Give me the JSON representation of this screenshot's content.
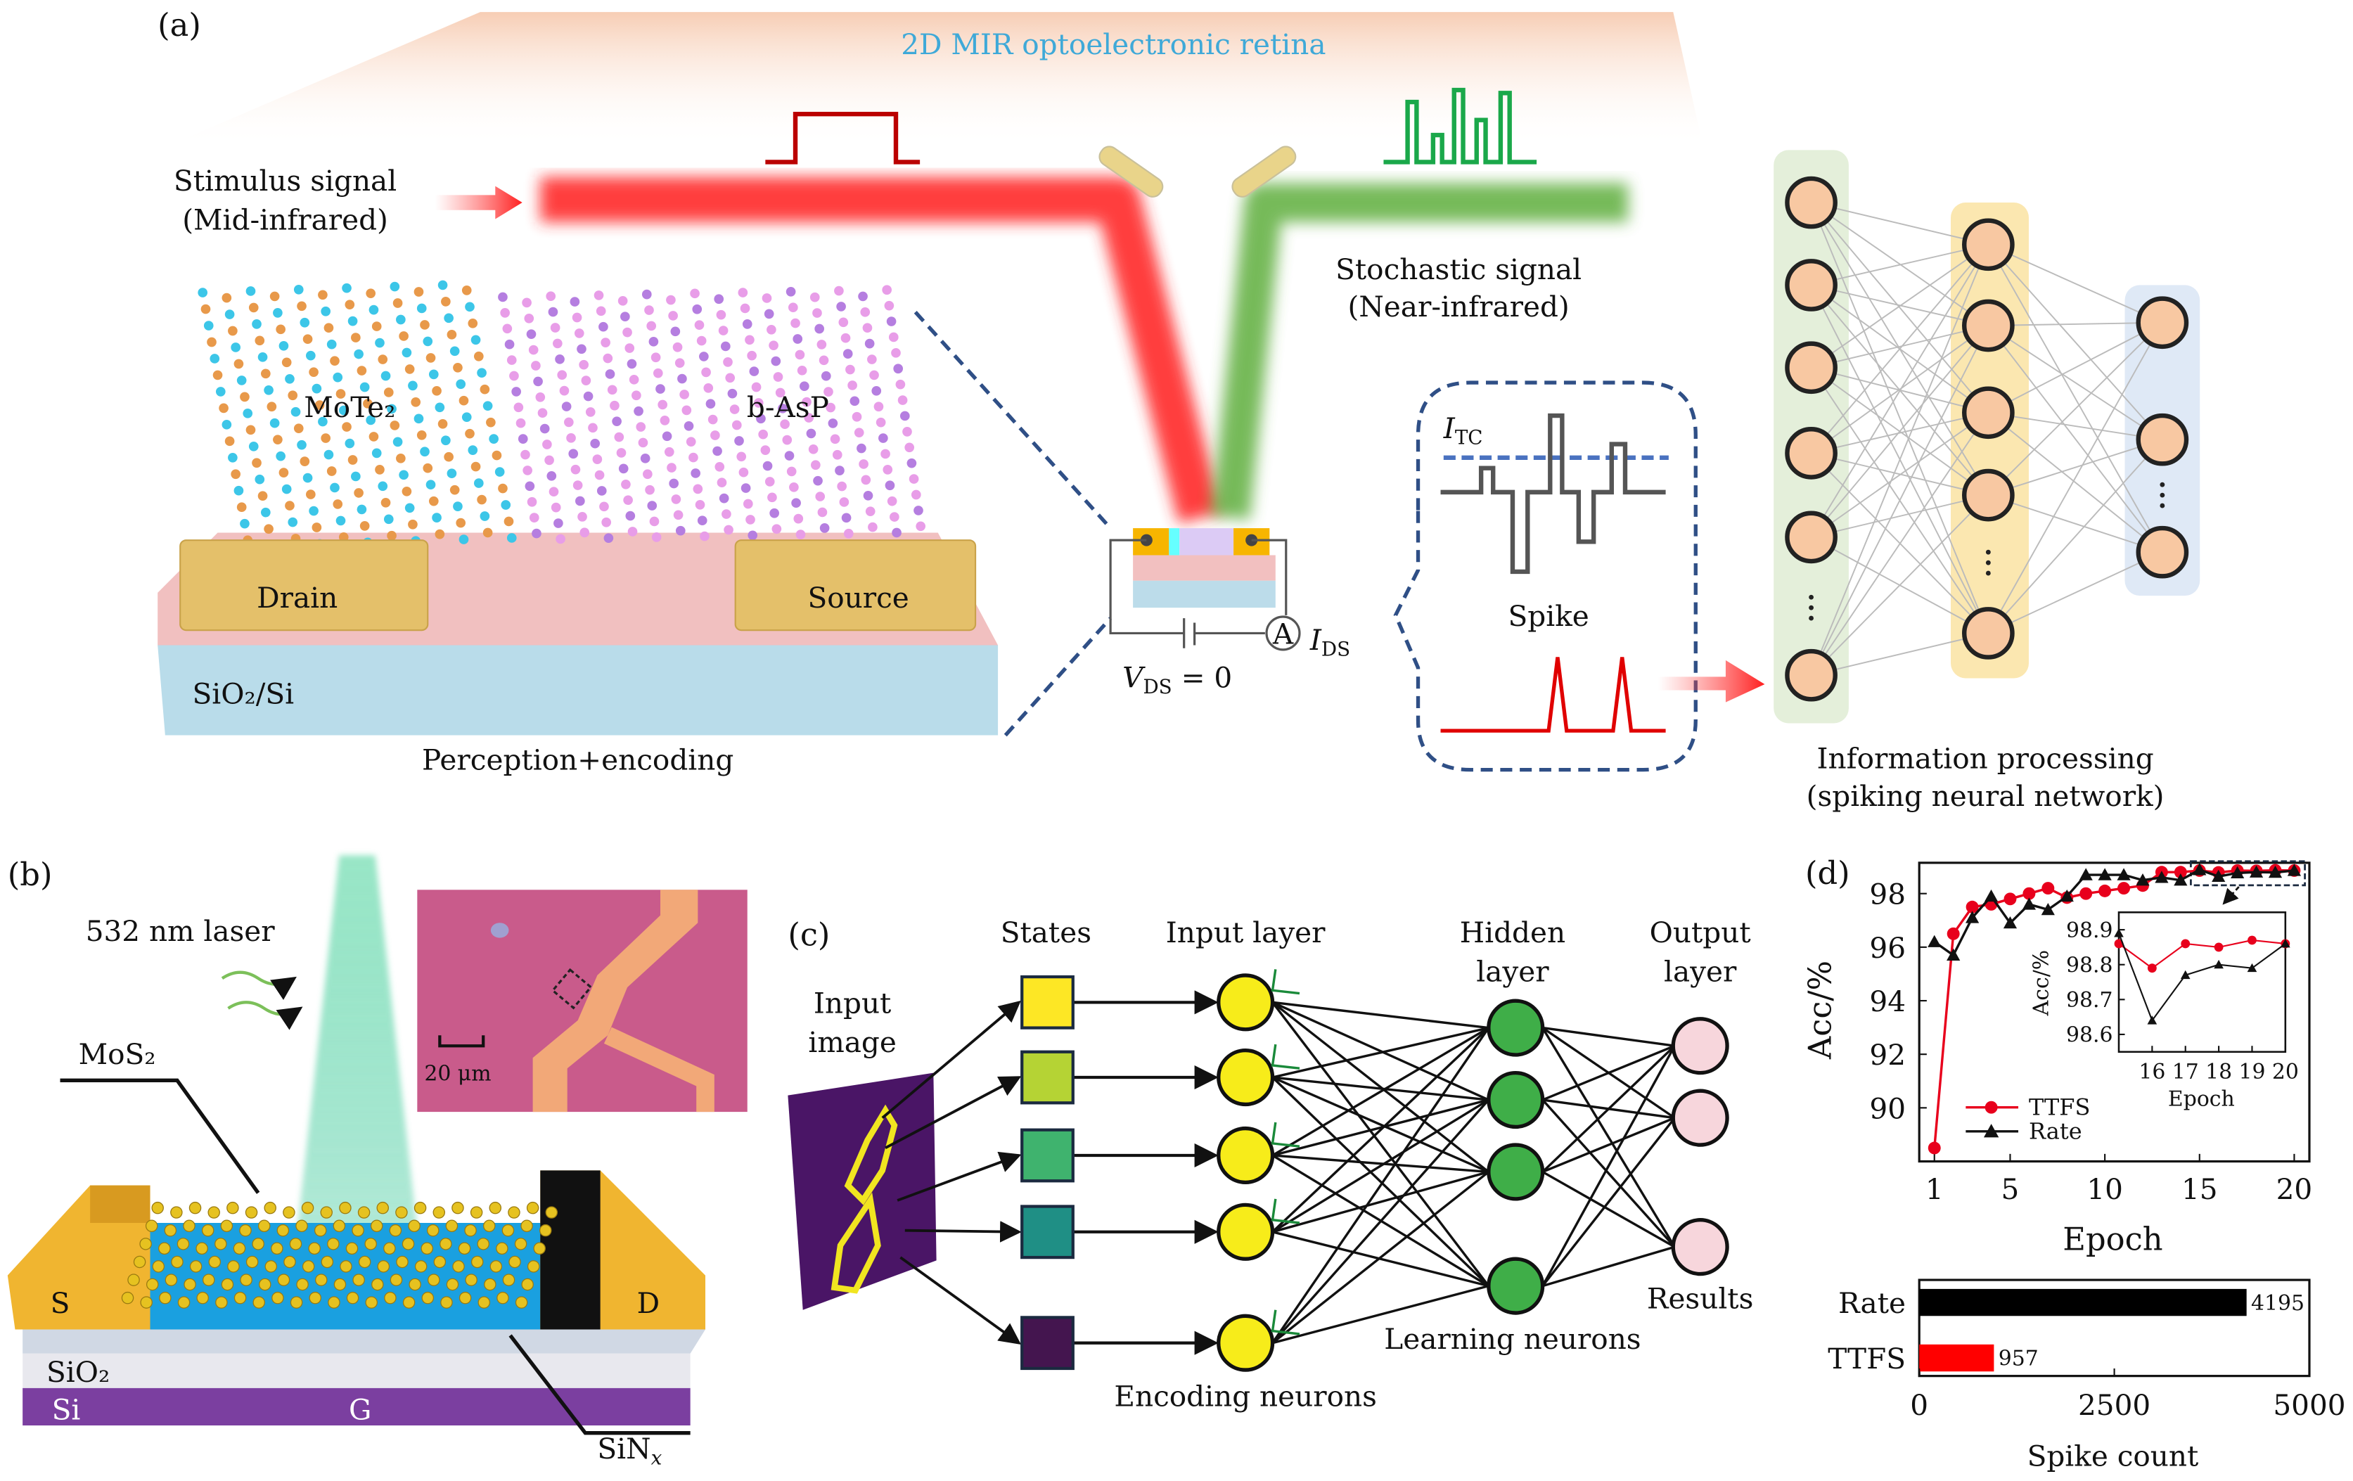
{
  "panel_a": {
    "label": "(a)",
    "title": "2D MIR optoelectronic retina",
    "title_color": "#3fa9d8",
    "stimulus_line1": "Stimulus signal",
    "stimulus_line2": "(Mid-infrared)",
    "stochastic_line1": "Stochastic signal",
    "stochastic_line2": "(Near-infrared)",
    "material_left": "MoTe₂",
    "material_right": "b-AsP",
    "drain": "Drain",
    "source": "Source",
    "substrate": "SiO₂/Si",
    "perception": "Perception+encoding",
    "ammeter": "A",
    "ids_symbol": "I",
    "ids_sub": "DS",
    "vds_symbol": "V",
    "vds_sub": "DS",
    "vds_value": " = 0",
    "itc_symbol": "I",
    "itc_sub": "TC",
    "spike": "Spike",
    "snn_line1": "Information processing",
    "snn_line2": "(spiking neural network)",
    "colors": {
      "mir_beam": "#ff2a2a",
      "nir_beam": "#5fae3c",
      "spike": "#e00000",
      "threshold": "#4a72c0"
    }
  },
  "panel_b": {
    "label": "(b)",
    "laser": "532 nm laser",
    "material": "MoS₂",
    "scale_bar": "20 μm",
    "source": "S",
    "drain": "D",
    "oxide": "SiO₂",
    "silicon": "Si",
    "gate": "G",
    "nitride": "SiN",
    "nitride_sub": "x"
  },
  "panel_c": {
    "label": "(c)",
    "states": "States",
    "input_layer": "Input layer",
    "hidden_line1": "Hidden",
    "hidden_line2": "layer",
    "output_line1": "Output",
    "output_line2": "layer",
    "input_image_line1": "Input",
    "input_image_line2": "image",
    "results": "Results",
    "learning": "Learning neurons",
    "encoding": "Encoding neurons",
    "state_colors": [
      "#fde725",
      "#b5d334",
      "#3fb36e",
      "#1f8f85",
      "#44154f"
    ]
  },
  "panel_d": {
    "label": "(d)"
  },
  "chart_data": [
    {
      "type": "line",
      "xlabel": "Epoch",
      "ylabel": "Acc/%",
      "xlim": [
        0.2,
        20.8
      ],
      "ylim": [
        88.0,
        99.15
      ],
      "xticks": [
        1,
        5,
        10,
        15,
        20
      ],
      "yticks": [
        90,
        92,
        94,
        96,
        98
      ],
      "legend_placement": "bottom-left",
      "x": [
        1,
        2,
        3,
        4,
        5,
        6,
        7,
        8,
        9,
        10,
        11,
        12,
        13,
        14,
        15,
        16,
        17,
        18,
        19,
        20
      ],
      "series": [
        {
          "name": "TTFS",
          "color": "#e8001c",
          "marker": "circle",
          "values": [
            88.5,
            96.5,
            97.5,
            97.6,
            97.8,
            98.0,
            98.2,
            97.85,
            98.0,
            98.1,
            98.2,
            98.3,
            98.8,
            98.8,
            98.86,
            98.79,
            98.86,
            98.85,
            98.87,
            98.86
          ]
        },
        {
          "name": "Rate",
          "color": "#111111",
          "marker": "triangle",
          "values": [
            96.2,
            95.7,
            97.1,
            97.9,
            96.9,
            97.6,
            97.4,
            97.9,
            98.7,
            98.7,
            98.7,
            98.5,
            98.6,
            98.5,
            98.89,
            98.64,
            98.77,
            98.8,
            98.79,
            98.86
          ]
        }
      ],
      "inset": {
        "xlabel": "Epoch",
        "ylabel": "Acc/%",
        "xlim": [
          15,
          20
        ],
        "ylim": [
          98.55,
          98.95
        ],
        "xticks": [
          16,
          17,
          18,
          19,
          20
        ],
        "yticks": [
          98.6,
          98.7,
          98.8,
          98.9
        ],
        "x": [
          15,
          16,
          17,
          18,
          19,
          20
        ],
        "series": [
          {
            "name": "TTFS",
            "values": [
              98.86,
              98.79,
              98.86,
              98.85,
              98.87,
              98.86
            ]
          },
          {
            "name": "Rate",
            "values": [
              98.89,
              98.64,
              98.77,
              98.8,
              98.79,
              98.86
            ]
          }
        ]
      }
    },
    {
      "type": "bar",
      "orientation": "horizontal",
      "xlabel": "Spike count",
      "xlim": [
        0,
        5000
      ],
      "xticks": [
        0,
        2500,
        5000
      ],
      "categories": [
        "Rate",
        "TTFS"
      ],
      "values": [
        4195,
        957
      ],
      "value_labels": [
        "4195",
        "957"
      ],
      "colors": [
        "#000000",
        "#ff0000"
      ]
    }
  ]
}
